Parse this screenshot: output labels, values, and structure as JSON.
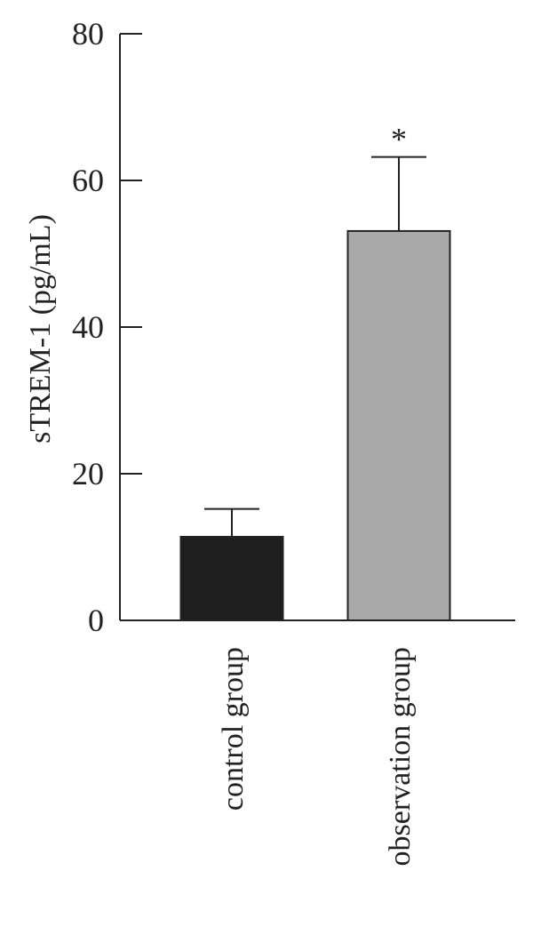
{
  "chart_data": {
    "type": "bar",
    "y_label": "sTREM-1 (pg/mL)",
    "categories": [
      "control group",
      "observation group"
    ],
    "values": [
      11.4,
      53.1
    ],
    "errors": [
      3.8,
      10.1
    ],
    "colors": [
      "#1e1e1e",
      "#a9a9a9"
    ],
    "annotations": [
      {
        "text": "*",
        "category": "observation group"
      }
    ],
    "ylim": [
      0,
      80
    ],
    "yticks": [
      0,
      20,
      40,
      60,
      80
    ],
    "grid": false
  }
}
